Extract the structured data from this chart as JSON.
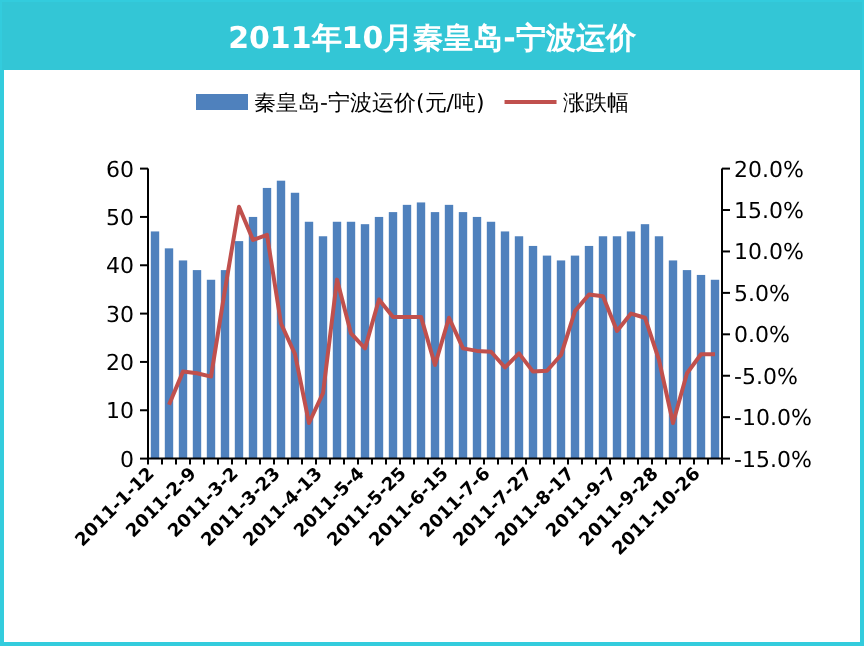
{
  "chart_data": {
    "type": "bar",
    "title": "2011年10月秦皇岛-宁波运价",
    "categories": [
      "2011-1-12",
      null,
      null,
      "2011-2-9",
      null,
      null,
      "2011-3-2",
      null,
      null,
      "2011-3-23",
      null,
      null,
      "2011-4-13",
      null,
      null,
      "2011-5-4",
      null,
      null,
      "2011-5-25",
      null,
      null,
      "2011-6-15",
      null,
      null,
      "2011-7-6",
      null,
      null,
      "2011-7-27",
      null,
      null,
      "2011-8-17",
      null,
      null,
      "2011-9-7",
      null,
      null,
      "2011-9-28",
      null,
      null,
      "2011-10-26",
      null
    ],
    "series": [
      {
        "name": "秦皇岛-宁波运价(元/吨)",
        "color": "#4f81bd",
        "values": [
          47,
          43.5,
          41,
          39,
          37,
          39,
          45,
          50,
          56,
          57.5,
          55,
          49,
          46,
          49,
          49,
          48.5,
          50,
          51,
          52.5,
          53,
          51,
          52.5,
          51,
          50,
          49,
          47,
          46,
          44,
          42,
          41,
          42,
          44,
          46,
          46,
          47,
          48.5,
          46,
          41,
          39,
          38,
          37
        ]
      },
      {
        "name": "涨跌幅",
        "type": "line",
        "axis": "y2",
        "color": "#c0504d",
        "values": [
          null,
          -8.5,
          -4.5,
          -4.7,
          -5.1,
          5.4,
          15.4,
          11.4,
          12,
          1.3,
          -2.4,
          -10.7,
          -7.1,
          6.6,
          0.1,
          -1.7,
          4.2,
          2.1,
          2.1,
          2.1,
          -3.7,
          2,
          -1.7,
          -2,
          -2.1,
          -4,
          -2.3,
          -4.5,
          -4.4,
          -2.5,
          2.8,
          4.8,
          4.6,
          0.4,
          2.5,
          2,
          -3.1,
          -10.7,
          -4.7,
          -2.4,
          -2.4
        ]
      }
    ],
    "ylim": [
      0,
      60
    ],
    "yticks": [
      0,
      10,
      20,
      30,
      40,
      50,
      60
    ],
    "y2lim": [
      -15,
      20
    ],
    "y2ticks": [
      {
        "value": -15,
        "label": "-15.0%"
      },
      {
        "value": -10,
        "label": "-10.0%"
      },
      {
        "value": -5,
        "label": "-5.0%"
      },
      {
        "value": 0,
        "label": "0.0%"
      },
      {
        "value": 5,
        "label": "5.0%"
      },
      {
        "value": 10,
        "label": "10.0%"
      },
      {
        "value": 15,
        "label": "15.0%"
      },
      {
        "value": 20,
        "label": "20.0%"
      }
    ],
    "legend": "top",
    "grid": false
  }
}
